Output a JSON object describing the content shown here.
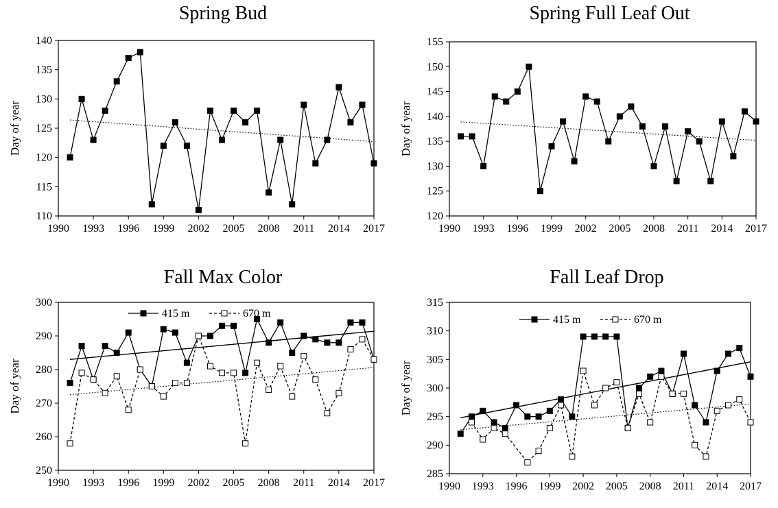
{
  "chart_data": [
    {
      "type": "line",
      "title": "Spring Bud",
      "xlabel": "",
      "ylabel": "Day of year",
      "xlim": [
        1990,
        2017
      ],
      "ylim": [
        110,
        140
      ],
      "xticks": [
        "1990",
        "1993",
        "1996",
        "1999",
        "2002",
        "2005",
        "2008",
        "2011",
        "2014",
        "2017"
      ],
      "yticks": [
        "110",
        "115",
        "120",
        "125",
        "130",
        "135",
        "140"
      ],
      "series": [
        {
          "name": "",
          "marker": "filled-square",
          "line": "solid",
          "x": [
            1991,
            1992,
            1993,
            1994,
            1995,
            1996,
            1997,
            1998,
            1999,
            2000,
            2001,
            2002,
            2003,
            2004,
            2005,
            2006,
            2007,
            2008,
            2009,
            2010,
            2011,
            2012,
            2013,
            2014,
            2015,
            2016,
            2017
          ],
          "values": [
            120,
            130,
            123,
            128,
            133,
            137,
            138,
            112,
            122,
            126,
            122,
            111,
            128,
            123,
            128,
            126,
            128,
            114,
            123,
            112,
            129,
            119,
            123,
            132,
            126,
            129,
            119
          ]
        }
      ],
      "trendlines": [
        {
          "style": "dotted",
          "x": [
            1991,
            2017
          ],
          "y": [
            126.4,
            122.7
          ]
        }
      ]
    },
    {
      "type": "line",
      "title": "Spring Full Leaf Out",
      "xlabel": "",
      "ylabel": "Day of year",
      "xlim": [
        1990,
        2017
      ],
      "ylim": [
        120,
        155
      ],
      "xticks": [
        "1990",
        "1993",
        "1996",
        "1999",
        "2002",
        "2005",
        "2008",
        "2011",
        "2014",
        "2017"
      ],
      "yticks": [
        "120",
        "125",
        "130",
        "135",
        "140",
        "145",
        "150",
        "155"
      ],
      "series": [
        {
          "name": "",
          "marker": "filled-square",
          "line": "solid",
          "x": [
            1991,
            1992,
            1993,
            1994,
            1995,
            1996,
            1997,
            1998,
            1999,
            2000,
            2001,
            2002,
            2003,
            2004,
            2005,
            2006,
            2007,
            2008,
            2009,
            2010,
            2011,
            2012,
            2013,
            2014,
            2015,
            2016,
            2017
          ],
          "values": [
            136,
            136,
            130,
            144,
            143,
            145,
            150,
            125,
            134,
            139,
            131,
            144,
            143,
            135,
            140,
            142,
            138,
            130,
            138,
            127,
            137,
            135,
            127,
            139,
            132,
            141,
            139
          ]
        }
      ],
      "trendlines": [
        {
          "style": "dotted",
          "x": [
            1991,
            2017
          ],
          "y": [
            138.9,
            135.2
          ]
        }
      ]
    },
    {
      "type": "line",
      "title": "Fall Max Color",
      "xlabel": "",
      "ylabel": "Day of year",
      "xlim": [
        1990,
        2017
      ],
      "ylim": [
        250,
        300
      ],
      "xticks": [
        "1990",
        "1993",
        "1996",
        "1999",
        "2002",
        "2005",
        "2008",
        "2011",
        "2014",
        "2017"
      ],
      "yticks": [
        "250",
        "260",
        "270",
        "280",
        "290",
        "300"
      ],
      "legend": {
        "position": "top",
        "entries": [
          "415 m",
          "670 m"
        ]
      },
      "series": [
        {
          "name": "415 m",
          "marker": "filled-square",
          "line": "solid",
          "x": [
            1991,
            1992,
            1993,
            1994,
            1995,
            1996,
            1997,
            1998,
            1999,
            2000,
            2001,
            2002,
            2003,
            2004,
            2005,
            2006,
            2007,
            2008,
            2009,
            2010,
            2011,
            2012,
            2013,
            2014,
            2015,
            2016,
            2017
          ],
          "values": [
            276,
            287,
            277,
            287,
            285,
            291,
            280,
            275,
            292,
            291,
            282,
            290,
            290,
            293,
            293,
            279,
            295,
            288,
            294,
            285,
            290,
            289,
            288,
            288,
            294,
            294,
            283
          ]
        },
        {
          "name": "670 m",
          "marker": "open-square",
          "line": "dashed",
          "x": [
            1991,
            1992,
            1993,
            1994,
            1995,
            1996,
            1997,
            1998,
            1999,
            2000,
            2001,
            2002,
            2003,
            2004,
            2005,
            2006,
            2007,
            2008,
            2009,
            2010,
            2011,
            2012,
            2013,
            2014,
            2015,
            2016,
            2017
          ],
          "values": [
            258,
            279,
            277,
            273,
            278,
            268,
            280,
            275,
            272,
            276,
            276,
            290,
            281,
            279,
            279,
            258,
            282,
            274,
            281,
            272,
            284,
            277,
            267,
            273,
            286,
            289,
            283
          ]
        }
      ],
      "trendlines": [
        {
          "style": "solid",
          "x": [
            1991,
            2017
          ],
          "y": [
            283.0,
            291.4
          ]
        },
        {
          "style": "dotted",
          "x": [
            1991,
            2017
          ],
          "y": [
            272.5,
            280.6
          ]
        }
      ]
    },
    {
      "type": "line",
      "title": "Fall Leaf Drop",
      "xlabel": "",
      "ylabel": "Day of year",
      "xlim": [
        1990,
        2017
      ],
      "ylim": [
        285,
        315
      ],
      "xticks": [
        "1990",
        "1993",
        "1996",
        "1999",
        "2002",
        "2005",
        "2008",
        "2011",
        "2014",
        "2017"
      ],
      "yticks": [
        "285",
        "290",
        "295",
        "300",
        "305",
        "310",
        "315"
      ],
      "legend": {
        "position": "top",
        "entries": [
          "415 m",
          "670 m"
        ]
      },
      "series": [
        {
          "name": "415 m",
          "marker": "filled-square",
          "line": "solid",
          "x": [
            1991,
            1992,
            1993,
            1994,
            1995,
            1996,
            1997,
            1998,
            1999,
            2000,
            2001,
            2002,
            2003,
            2004,
            2005,
            2006,
            2007,
            2008,
            2009,
            2010,
            2011,
            2012,
            2013,
            2014,
            2015,
            2016,
            2017
          ],
          "values": [
            292,
            295,
            296,
            294,
            293,
            297,
            295,
            295,
            296,
            298,
            295,
            309,
            309,
            309,
            309,
            293,
            300,
            302,
            303,
            299,
            306,
            297,
            294,
            303,
            306,
            307,
            302
          ]
        },
        {
          "name": "670 m",
          "marker": "open-square",
          "line": "dashed",
          "x": [
            1992,
            1993,
            1994,
            1995,
            1997,
            1998,
            1999,
            2000,
            2001,
            2002,
            2003,
            2004,
            2005,
            2006,
            2007,
            2008,
            2009,
            2010,
            2011,
            2012,
            2013,
            2014,
            2015,
            2016,
            2017
          ],
          "values": [
            294,
            291,
            293,
            292,
            287,
            289,
            293,
            297,
            288,
            303,
            297,
            300,
            301,
            293,
            299,
            294,
            302,
            299,
            299,
            290,
            288,
            296,
            297,
            298,
            294
          ]
        }
      ],
      "trendlines": [
        {
          "style": "solid",
          "x": [
            1991,
            2017
          ],
          "y": [
            294.8,
            304.6
          ]
        },
        {
          "style": "dotted",
          "x": [
            1991,
            2017
          ],
          "y": [
            292.7,
            297.2
          ]
        }
      ]
    }
  ]
}
